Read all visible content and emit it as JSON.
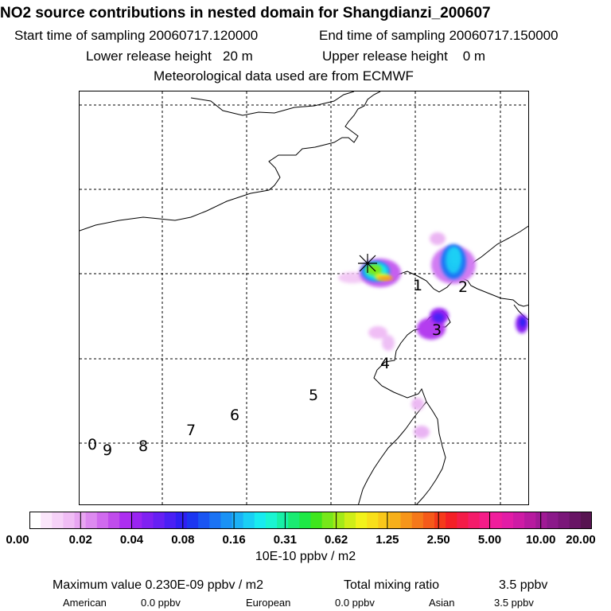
{
  "header": {
    "title": "NO2 source contributions in nested domain for Shangdianzi_200607",
    "start_label": "Start time of sampling 20060717.120000",
    "end_label": "End time of sampling 20060717.150000",
    "lower_release": "Lower release height   20 m",
    "upper_release": "Upper release height    0 m",
    "met_source": "Meteorological data used are from ECMWF"
  },
  "map": {
    "station_marker": "Shangdianzi",
    "trajectory_labels": [
      "0",
      "9",
      "8",
      "7",
      "6",
      "5",
      "4",
      "3",
      "2",
      "1"
    ]
  },
  "legend": {
    "tick_labels": [
      "0.00",
      "0.02",
      "0.04",
      "0.08",
      "0.16",
      "0.31",
      "0.62",
      "1.25",
      "2.50",
      "5.00",
      "10.00",
      "20.00"
    ],
    "units": "10E-10 ppbv / m2",
    "colors": [
      "#ffffff",
      "#fbe6fb",
      "#f6d2f8",
      "#f0bdf5",
      "#e8a5f2",
      "#dd8af0",
      "#d06aee",
      "#c04cec",
      "#ad2ff0",
      "#9a24f2",
      "#8021f2",
      "#6720f3",
      "#4a20f4",
      "#2f20f3",
      "#1c36f0",
      "#1a55f2",
      "#1b73f4",
      "#1a92f5",
      "#1bb1f6",
      "#1acff5",
      "#18ebf0",
      "#1af5d2",
      "#18f0a6",
      "#1aeb72",
      "#1de845",
      "#3fe61d",
      "#77e81a",
      "#a4ea18",
      "#cfee17",
      "#f2f21a",
      "#f8df1a",
      "#f9c81a",
      "#f7af1a",
      "#f6951a",
      "#f5781a",
      "#f55a1a",
      "#f53a1b",
      "#f41f26",
      "#f41c48",
      "#f41c6a",
      "#f41c88",
      "#f01d9c",
      "#e21ca6",
      "#ce1ba5",
      "#b71a9f",
      "#a01a95",
      "#8b1a8a",
      "#7a1779",
      "#681565",
      "#571451"
    ]
  },
  "stats": {
    "max_value": "Maximum value  0.230E-09 ppbv / m2",
    "total_mixing": "Total mixing ratio",
    "total_value": "3.5 ppbv",
    "american_label": "American",
    "american_value": "0.0 ppbv",
    "european_label": "European",
    "european_value": "0.0 ppbv",
    "asian_label": "Asian",
    "asian_value": "3.5 ppbv"
  }
}
